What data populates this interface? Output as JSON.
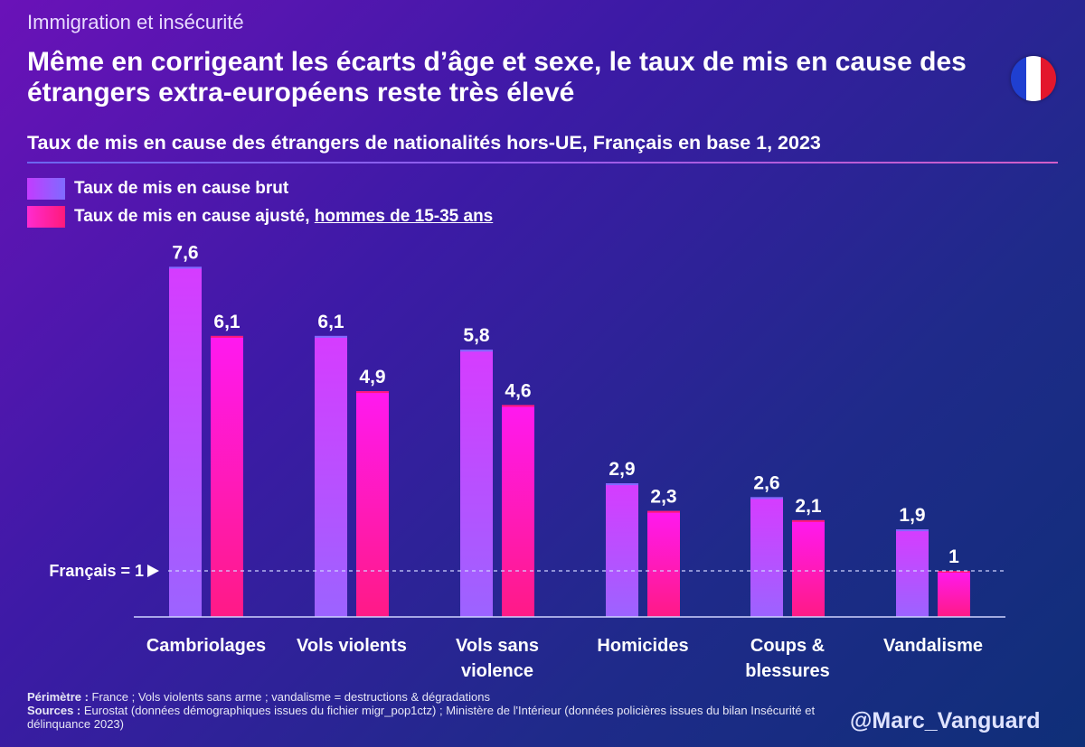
{
  "supertitle": "Immigration et insécurité",
  "title": "Même en corrigeant les écarts d’âge et sexe, le taux de mis en cause des étrangers extra-européens reste très élevé",
  "subtitle": "Taux de mis en cause des étrangers de nationalités hors-UE, Français en base 1, 2023",
  "legend": {
    "brut": "Taux de mis en cause brut",
    "adjusted_prefix": "Taux de mis en cause ajusté, ",
    "adjusted_underlined": "hommes de 15-35 ans"
  },
  "colors": {
    "brut": "#a546ff",
    "adjusted": "#ff1aa8",
    "flag_blue": "#1f3fd1",
    "flag_white": "#ffffff",
    "flag_red": "#e3172c"
  },
  "icons": {
    "flag": "france-flag-icon",
    "arrow": "triangle-right-icon"
  },
  "chart_data": {
    "type": "bar",
    "categories": [
      "Cambriolages",
      "Vols violents",
      "Vols sans violence",
      "Homicides",
      "Coups & blessures",
      "Vandalisme"
    ],
    "series": [
      {
        "name": "Taux de mis en cause brut",
        "values": [
          7.6,
          6.1,
          5.8,
          2.9,
          2.6,
          1.9
        ]
      },
      {
        "name": "Taux de mis en cause ajusté, hommes de 15-35 ans",
        "values": [
          6.1,
          4.9,
          4.6,
          2.3,
          2.1,
          1
        ]
      }
    ],
    "value_labels": [
      [
        "7,6",
        "6,1",
        "5,8",
        "2,9",
        "2,6",
        "1,9"
      ],
      [
        "6,1",
        "4,9",
        "4,6",
        "2,3",
        "2,1",
        "1"
      ]
    ],
    "category_labels": [
      [
        "Cambriolages"
      ],
      [
        "Vols violents"
      ],
      [
        "Vols sans",
        "violence"
      ],
      [
        "Homicides"
      ],
      [
        "Coups &",
        "blessures"
      ],
      [
        "Vandalisme"
      ]
    ],
    "reference_line": {
      "value": 1,
      "label": "Français = 1"
    },
    "ylim": [
      0,
      8
    ]
  },
  "footer": {
    "perimetre_label": "Périmètre :",
    "perimetre_text": " France ; Vols violents sans arme ; vandalisme = destructions & dégradations",
    "sources_label": "Sources :",
    "sources_text": " Eurostat (données démographiques issues du fichier migr_pop1ctz) ; Ministère de l'Intérieur (données policières issues du bilan Insécurité et délinquance 2023)"
  },
  "handle": "@Marc_Vanguard"
}
